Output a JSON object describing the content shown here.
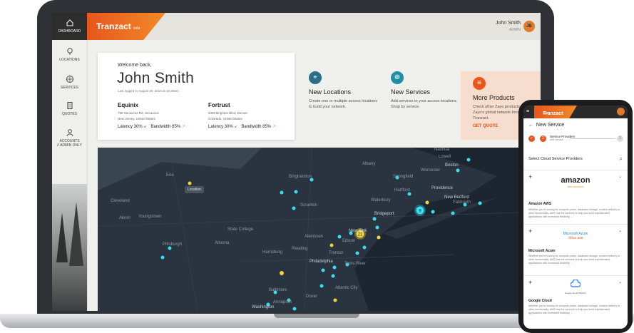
{
  "app": {
    "brand": "Tranzact",
    "beta": "beta"
  },
  "sidebar": {
    "items": [
      {
        "label": "DASHBOARD",
        "icon": "home-icon"
      },
      {
        "label": "LOCATIONS",
        "icon": "map-pin-icon"
      },
      {
        "label": "SERVICES",
        "icon": "globe-icon"
      },
      {
        "label": "QUOTES",
        "icon": "document-icon"
      },
      {
        "label": "ACCOUNTS",
        "sub": "// ADMIN ONLY",
        "icon": "users-icon"
      }
    ]
  },
  "user": {
    "name": "John Smith",
    "role": "ADMIN",
    "initials": "JS"
  },
  "welcome": {
    "greeting": "Welcome back,",
    "name": "John Smith",
    "last_login": "Last logged in August 20, 2019 at 10:20am",
    "sites": [
      {
        "name": "Equinix",
        "line1": "755 Secaucus Rd, Secaucus",
        "line2": "New Jersey, United States",
        "latency": "Latency 30%",
        "bandwidth": "Bandwidth 85%"
      },
      {
        "name": "Fortrust",
        "line1": "4300 Brighton Blvd, Denver",
        "line2": "Colorado, United States",
        "latency": "Latency 30%",
        "bandwidth": "Bandwidth 85%"
      }
    ]
  },
  "tiles": [
    {
      "title": "New Locations",
      "desc": "Create one or multiple access locations to build your network.",
      "icon": "location-icon"
    },
    {
      "title": "New Services",
      "desc": "Add services to your access locations. Shop by service.",
      "icon": "globe-icon"
    },
    {
      "title": "More Products",
      "desc": "Check other Zayo products across Zayo's global network through Tranzact.",
      "cta": "GET QUOTE",
      "icon": "database-icon"
    }
  ],
  "map": {
    "tooltip": "Location",
    "cities": [
      "Albany",
      "Nashua",
      "Lowell",
      "Boston",
      "Worcester",
      "Springfield",
      "Hartford",
      "Providence",
      "New Bedford",
      "Falmouth",
      "Waterbury",
      "Bridgeport",
      "Erie",
      "Binghamton",
      "Scranton",
      "Cleveland",
      "Akron",
      "Youngstown",
      "State College",
      "Altoona",
      "Pittsburgh",
      "Harrisburg",
      "Reading",
      "Allentown",
      "New York",
      "Edison",
      "Trenton",
      "Toms River",
      "Philadelphia",
      "Baltimore",
      "Dover",
      "Annapolis",
      "Washington",
      "Atlantic City"
    ],
    "clusters": [
      "21",
      "9"
    ]
  },
  "mobile": {
    "brand": "Tranzact",
    "beta": "beta",
    "header": "New Service",
    "step_num": "2",
    "step_label": "Service Providers",
    "step_sub": "Add Service",
    "step_next": "3",
    "select_label": "Select Cloud Service Providers",
    "providers": [
      {
        "name": "Amazon AWS",
        "logo": "amazon",
        "logo_sub": "web services",
        "desc": "Whether you're looking for compute power, database storage, content delivery or other functionality, AWS has the services to help you build sophisticated applications with increased flexibility. ..."
      },
      {
        "name": "Microsoft Azure",
        "logo": "Microsoft Azure",
        "logo_sub": "Office 365",
        "desc": "Whether you're looking for compute power, database storage, content delivery or other functionality, AWS has the services to help you build sophisticated applications with increased flexibility. ..."
      },
      {
        "name": "Google Cloud",
        "logo": "Google Cloud Platform",
        "desc": "Whether you're looking for compute power, database storage, content delivery or other functionality, AWS has the services to help you build sophisticated applications with increased flexibility. ..."
      }
    ]
  }
}
